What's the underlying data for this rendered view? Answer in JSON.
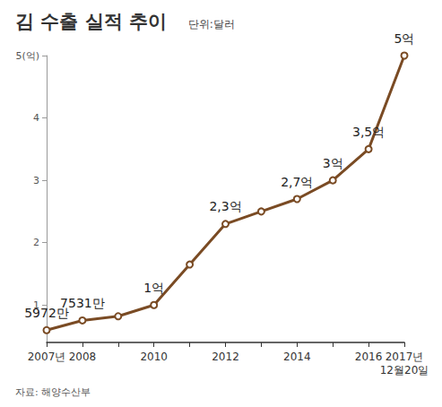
{
  "chart_data": {
    "type": "line",
    "title": "김 수출 실적 추이",
    "subtitle": "단위:달러",
    "source": "자료: 해양수산부",
    "categories": [
      "2007년",
      "2008",
      null,
      "2010",
      null,
      "2012",
      null,
      "2014",
      null,
      "2016",
      "2017년\n12월20일"
    ],
    "values": [
      0.5972,
      0.7531,
      0.82,
      1,
      1.65,
      2.3,
      2.5,
      2.7,
      3,
      3.5,
      5
    ],
    "value_labels": [
      "5972만",
      "7531만",
      null,
      "1억",
      null,
      "2,3억",
      null,
      "2,7억",
      "3억",
      "3,5억",
      "5억"
    ],
    "data_labels": true,
    "color": "#7a4b24",
    "marker": "circle",
    "ylim": [
      0.4,
      5
    ],
    "yticks": [
      1,
      2,
      3,
      4,
      {
        "value": 5,
        "label": "5(억)"
      }
    ],
    "grid": false
  }
}
